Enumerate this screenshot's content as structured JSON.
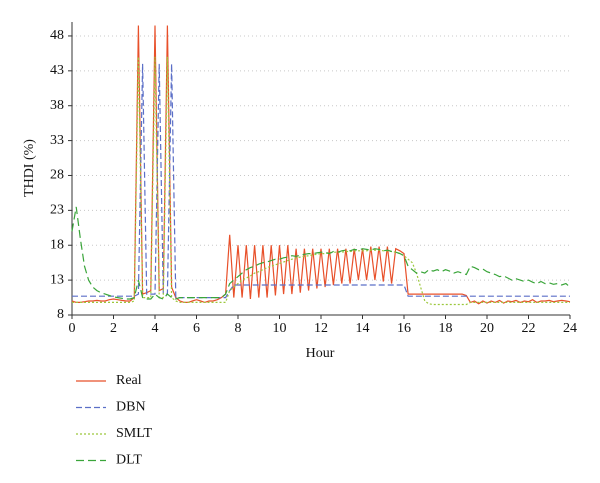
{
  "chart_data": {
    "type": "line",
    "xlabel": "Hour",
    "ylabel": "THDI (%)",
    "x": [
      0,
      0.2,
      0.4,
      0.6,
      0.8,
      1,
      1.2,
      1.4,
      1.6,
      1.8,
      2,
      2.2,
      2.4,
      2.6,
      2.8,
      3,
      3.2,
      3.4,
      3.6,
      3.8,
      4,
      4.2,
      4.4,
      4.6,
      4.8,
      5,
      5.2,
      5.4,
      5.6,
      5.8,
      6,
      6.2,
      6.4,
      6.6,
      6.8,
      7,
      7.2,
      7.4,
      7.6,
      7.8,
      8,
      8.2,
      8.4,
      8.6,
      8.8,
      9,
      9.2,
      9.4,
      9.6,
      9.8,
      10,
      10.2,
      10.4,
      10.6,
      10.8,
      11,
      11.2,
      11.4,
      11.6,
      11.8,
      12,
      12.2,
      12.4,
      12.6,
      12.8,
      13,
      13.2,
      13.4,
      13.6,
      13.8,
      14,
      14.2,
      14.4,
      14.6,
      14.8,
      15,
      15.2,
      15.4,
      15.6,
      15.8,
      16,
      16.2,
      16.4,
      16.6,
      16.8,
      17,
      17.2,
      17.4,
      17.6,
      17.8,
      18,
      18.2,
      18.4,
      18.6,
      18.8,
      19,
      19.2,
      19.4,
      19.6,
      19.8,
      20,
      20.2,
      20.4,
      20.6,
      20.8,
      21,
      21.2,
      21.4,
      21.6,
      21.8,
      22,
      22.2,
      22.4,
      22.6,
      22.8,
      23,
      23.2,
      23.4,
      23.6,
      23.8,
      24
    ],
    "series": [
      {
        "name": "Real",
        "color": "#e8502a",
        "values": [
          10,
          9.8,
          9.8,
          9.9,
          10,
          10,
          10.1,
          10,
          10,
          10.2,
          10.3,
          10.2,
          10.1,
          10,
          10,
          10.5,
          49.5,
          11,
          11.2,
          11.5,
          49.5,
          11.5,
          11.8,
          49.5,
          12,
          10.5,
          10,
          9.8,
          9.8,
          10,
          10.2,
          10,
          9.8,
          10,
          10,
          10.2,
          10.5,
          11,
          19.5,
          10.5,
          18,
          10.5,
          18,
          10.3,
          18,
          10.5,
          18,
          10.5,
          18,
          10.8,
          18,
          11,
          18,
          11,
          17.5,
          11.2,
          17.5,
          11.5,
          17.5,
          11.8,
          17.5,
          12,
          17.5,
          12.3,
          17.5,
          12.5,
          17.5,
          12.5,
          17.5,
          13,
          17.5,
          13,
          17.8,
          13,
          17.8,
          12.8,
          17.8,
          12.5,
          17.5,
          17.2,
          16.8,
          11,
          11,
          11,
          11,
          11,
          11,
          11,
          11,
          11,
          11,
          11,
          11,
          11,
          11,
          10.8,
          9.8,
          10,
          9.6,
          10,
          9.7,
          10,
          9.8,
          10.1,
          9.7,
          10,
          9.9,
          10.1,
          9.8,
          10,
          9.9,
          10.2,
          9.8,
          10,
          10,
          10.1,
          9.9,
          10,
          10.1,
          10,
          9.9
        ]
      },
      {
        "name": "DBN",
        "color": "#5b6fc7",
        "values": [
          10.7,
          10.7,
          10.7,
          10.7,
          10.7,
          10.7,
          10.7,
          10.7,
          10.7,
          10.7,
          10.7,
          10.7,
          10.7,
          10.7,
          10.7,
          10.7,
          11,
          44,
          11,
          11,
          11,
          44,
          11,
          11,
          44,
          10.5,
          10.5,
          10.5,
          10.5,
          10.5,
          10.5,
          10.5,
          10.5,
          10.5,
          10.5,
          10.5,
          10.5,
          10.5,
          11.5,
          12.3,
          12.3,
          12.3,
          12.3,
          12.3,
          12.3,
          12.3,
          12.3,
          12.3,
          12.3,
          12.3,
          12.3,
          12.3,
          12.3,
          12.3,
          12.3,
          12.3,
          12.3,
          12.3,
          12.3,
          12.3,
          12.3,
          12.3,
          12.3,
          12.3,
          12.3,
          12.3,
          12.3,
          12.3,
          12.3,
          12.3,
          12.3,
          12.3,
          12.3,
          12.3,
          12.3,
          12.3,
          12.3,
          12.3,
          12.3,
          12.3,
          12.3,
          10.7,
          10.7,
          10.7,
          10.7,
          10.7,
          10.7,
          10.7,
          10.7,
          10.7,
          10.7,
          10.7,
          10.7,
          10.7,
          10.7,
          10.7,
          10.7,
          10.7,
          10.7,
          10.7,
          10.7,
          10.7,
          10.7,
          10.7,
          10.7,
          10.7,
          10.7,
          10.7,
          10.7,
          10.7,
          10.7,
          10.7,
          10.7,
          10.7,
          10.7,
          10.7,
          10.7,
          10.7,
          10.7,
          10.7,
          10.7
        ]
      },
      {
        "name": "SMLT",
        "color": "#9cc83c",
        "values": [
          9.8,
          9.8,
          9.8,
          9.8,
          9.8,
          9.8,
          9.8,
          9.8,
          9.8,
          9.8,
          9.8,
          9.8,
          9.8,
          9.8,
          9.8,
          10,
          45,
          10.5,
          10.5,
          10.5,
          45,
          10.5,
          10.5,
          45,
          10.5,
          10,
          9.8,
          9.8,
          9.8,
          9.8,
          9.8,
          9.8,
          9.8,
          9.8,
          9.8,
          9.8,
          9.8,
          9.8,
          11.5,
          12,
          12.5,
          13,
          13.3,
          13.6,
          14,
          14.2,
          14.5,
          14.8,
          15,
          15.2,
          15.4,
          15.6,
          15.8,
          16,
          16.2,
          16.3,
          16.4,
          16.5,
          16.6,
          16.7,
          16.8,
          16.8,
          16.9,
          17,
          17,
          17,
          17.1,
          17.1,
          17.2,
          17.2,
          17.2,
          17.2,
          17.3,
          17.3,
          17.3,
          17.2,
          17.2,
          17.1,
          17,
          16.8,
          16.5,
          16,
          15.5,
          14,
          12,
          10,
          9.6,
          9.5,
          9.5,
          9.5,
          9.5,
          9.5,
          9.5,
          9.5,
          9.5,
          9.5,
          9.8,
          9.8,
          9.8,
          9.8,
          9.8,
          9.8,
          9.8,
          9.8,
          9.8,
          9.8,
          9.8,
          9.8,
          9.8,
          9.8,
          9.8,
          9.8,
          9.8,
          9.8,
          9.8,
          9.8,
          9.8,
          9.8,
          9.8,
          9.8,
          9.8
        ]
      },
      {
        "name": "DLT",
        "color": "#3aa53a",
        "values": [
          20,
          23.5,
          19,
          15,
          13,
          12,
          11.5,
          11.2,
          11,
          10.8,
          10.6,
          10.5,
          10.4,
          10.3,
          10.3,
          10.5,
          13,
          10.5,
          10.3,
          10.3,
          11,
          10.5,
          10.3,
          11,
          10.5,
          10.3,
          10.5,
          10.5,
          10.5,
          10.5,
          10.5,
          10.5,
          10.5,
          10.5,
          10.5,
          10.5,
          10.5,
          11,
          12.5,
          13,
          13.5,
          14,
          14.5,
          14.8,
          15,
          15.3,
          15.5,
          15.6,
          15.8,
          16,
          16,
          16.2,
          16.3,
          16.5,
          16.4,
          16.6,
          16.7,
          16.8,
          16.8,
          16.9,
          17,
          17,
          16.8,
          17.1,
          17,
          17.2,
          17.3,
          17.2,
          17.4,
          17.3,
          17.5,
          17.4,
          17.3,
          17.5,
          17.4,
          17.2,
          17.3,
          17.1,
          17,
          16.8,
          16.5,
          15,
          14.5,
          14,
          14.2,
          14,
          14.5,
          14.3,
          14.5,
          14.2,
          14.5,
          14.3,
          14,
          14.2,
          14,
          13.8,
          15,
          14.8,
          14.5,
          14.6,
          14.2,
          14,
          13.8,
          13.5,
          13.6,
          13.3,
          13,
          13.2,
          13,
          12.8,
          13,
          12.7,
          12.5,
          12.8,
          12.5,
          12.6,
          12.4,
          12.5,
          12.3,
          12.5,
          12
        ]
      }
    ],
    "xlim": [
      0,
      24
    ],
    "xticks": [
      0,
      2,
      4,
      6,
      8,
      10,
      12,
      14,
      16,
      18,
      20,
      22,
      24
    ],
    "ylim": [
      8,
      50
    ],
    "yticks": [
      8,
      13,
      18,
      23,
      28,
      33,
      38,
      43,
      48
    ],
    "grid": true
  }
}
